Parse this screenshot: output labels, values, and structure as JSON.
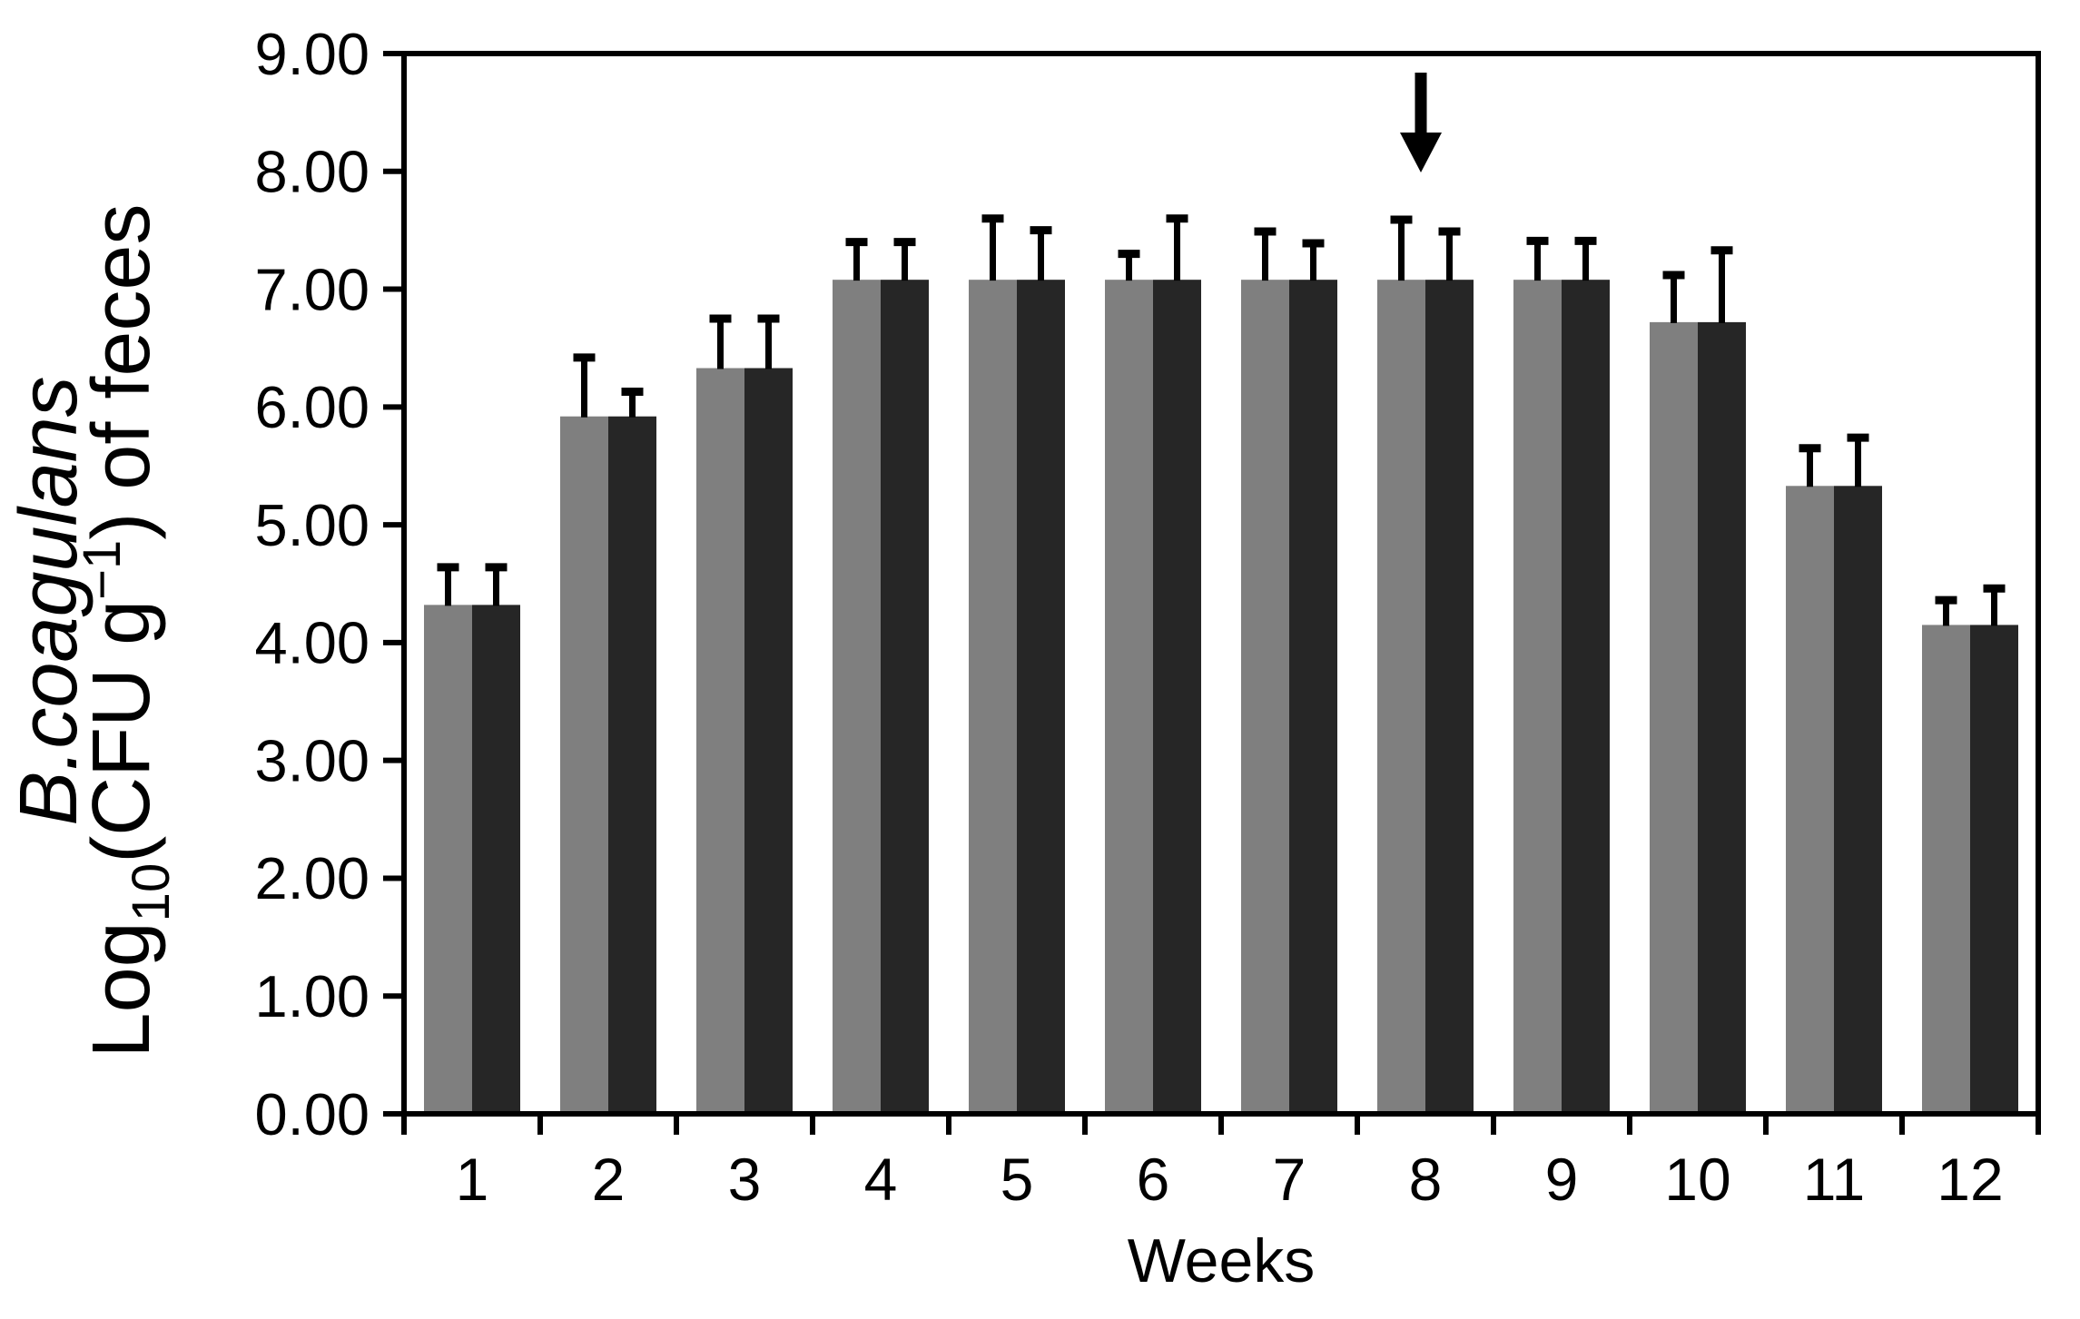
{
  "chart_data": {
    "type": "bar",
    "title": "",
    "categories": [
      "1",
      "2",
      "3",
      "4",
      "5",
      "6",
      "7",
      "8",
      "9",
      "10",
      "11",
      "12"
    ],
    "series": [
      {
        "name": "gray-series",
        "color": "#7f7f7f",
        "values": [
          4.32,
          5.92,
          6.33,
          7.08,
          7.08,
          7.08,
          7.08,
          7.08,
          7.08,
          6.72,
          5.33,
          4.15
        ],
        "errors_up": [
          0.32,
          0.5,
          0.42,
          0.32,
          0.52,
          0.22,
          0.41,
          0.51,
          0.33,
          0.4,
          0.32,
          0.21
        ]
      },
      {
        "name": "dark-series",
        "color": "#262626",
        "values": [
          4.32,
          5.92,
          6.33,
          7.08,
          7.08,
          7.08,
          7.08,
          7.08,
          7.08,
          6.72,
          5.33,
          4.15
        ],
        "errors_up": [
          0.32,
          0.21,
          0.42,
          0.32,
          0.42,
          0.52,
          0.31,
          0.41,
          0.33,
          0.61,
          0.41,
          0.31
        ]
      }
    ],
    "xlabel": "Weeks",
    "ylabel": {
      "line1": "B.coagulans",
      "line1_italic": true,
      "line2_parts": [
        {
          "text": "Log"
        },
        {
          "text": "10",
          "script": "sub"
        },
        {
          "text": "(CFU g"
        },
        {
          "text": "−1",
          "script": "sup"
        },
        {
          "text": ") of feces"
        }
      ]
    },
    "ylim": [
      0,
      9
    ],
    "yticks": [
      {
        "value": 0,
        "label": "0.00"
      },
      {
        "value": 1,
        "label": "1.00"
      },
      {
        "value": 2,
        "label": "2.00"
      },
      {
        "value": 3,
        "label": "3.00"
      },
      {
        "value": 4,
        "label": "4.00"
      },
      {
        "value": 5,
        "label": "5.00"
      },
      {
        "value": 6,
        "label": "6.00"
      },
      {
        "value": 7,
        "label": "7.00"
      },
      {
        "value": 8,
        "label": "8.00"
      },
      {
        "value": 9,
        "label": "9.00"
      }
    ],
    "grid": false,
    "legend": "none",
    "annotation": {
      "type": "down-arrow",
      "over_category": "8"
    },
    "colors": {
      "axis": "#000000",
      "error_bar": "#000000",
      "background": "#ffffff"
    }
  }
}
